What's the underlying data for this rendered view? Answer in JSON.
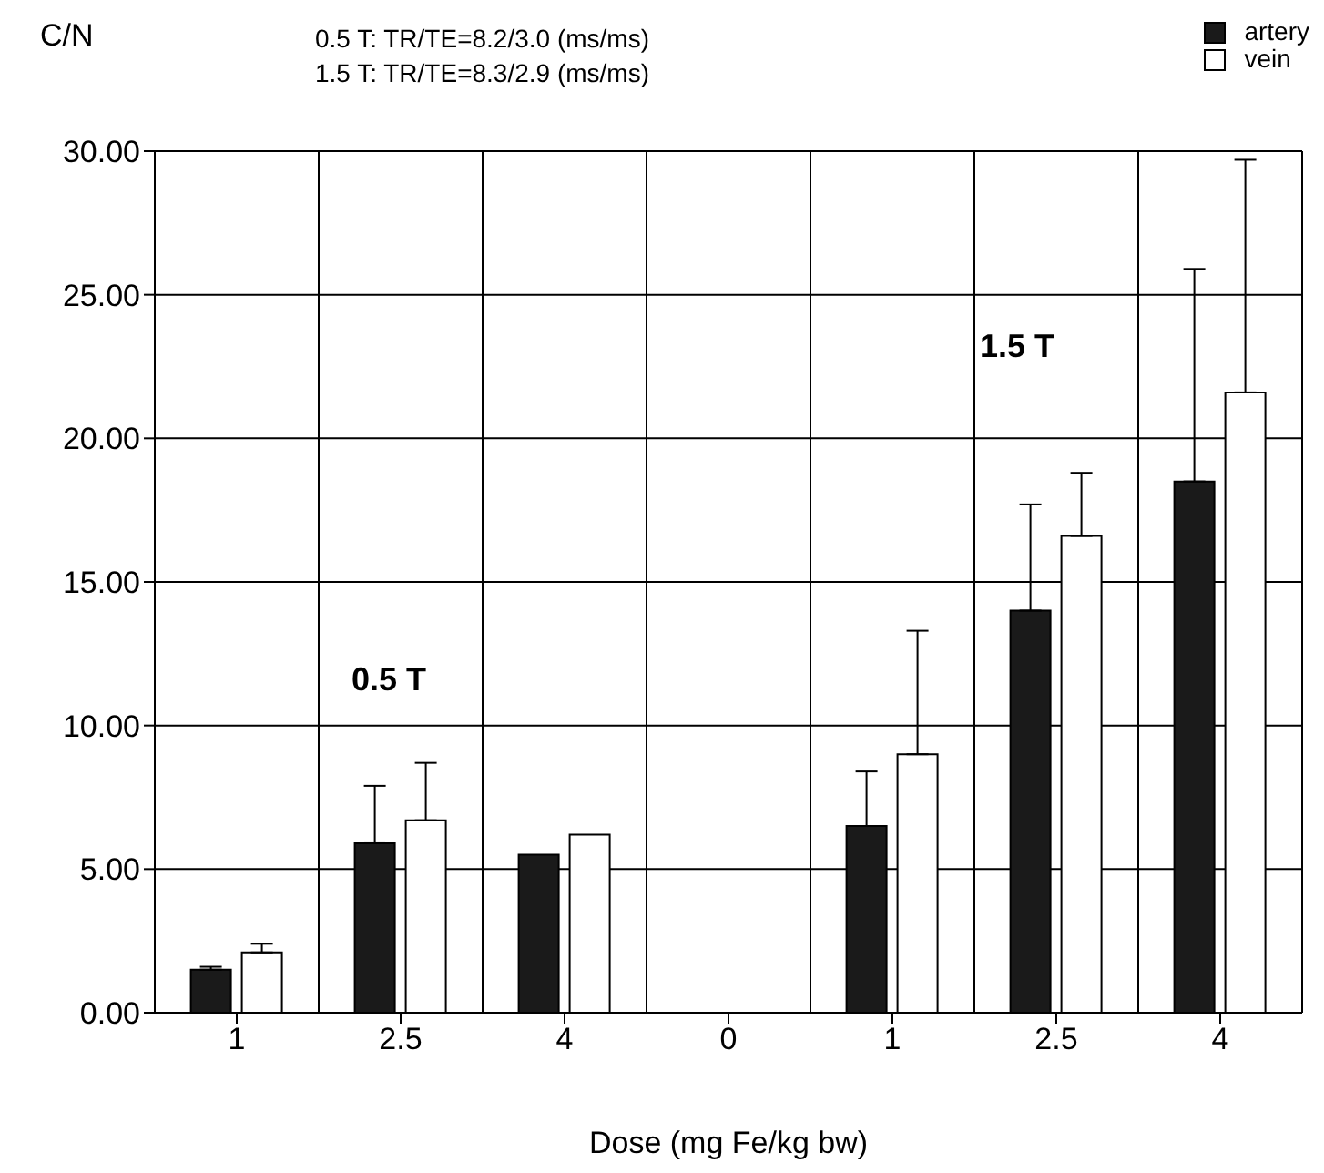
{
  "chart_data": {
    "type": "bar",
    "ylabel": "C/N",
    "subtitle": "0.5 T: TR/TE=8.2/3.0 (ms/ms)\n1.5 T: TR/TE=8.3/2.9 (ms/ms)",
    "xlabel": "Dose (mg Fe/kg bw)",
    "categories": [
      "1",
      "2.5",
      "4",
      "0",
      "1",
      "2.5",
      "4"
    ],
    "series": [
      {
        "name": "artery",
        "color": "#1a1a1a",
        "values": [
          1.5,
          5.9,
          5.5,
          null,
          6.5,
          14.0,
          18.5
        ],
        "errors": [
          [
            1.5,
            1.6
          ],
          [
            5.9,
            7.9
          ],
          null,
          null,
          [
            6.5,
            8.4
          ],
          [
            14.0,
            17.7
          ],
          [
            18.5,
            25.9
          ]
        ]
      },
      {
        "name": "vein",
        "color": "#ffffff",
        "values": [
          2.1,
          6.7,
          6.2,
          null,
          9.0,
          16.6,
          21.6
        ],
        "errors": [
          [
            2.1,
            2.4
          ],
          [
            6.7,
            8.7
          ],
          null,
          null,
          [
            9.0,
            13.3
          ],
          [
            16.6,
            18.8
          ],
          [
            21.6,
            29.7
          ]
        ]
      }
    ],
    "ylim": [
      0,
      30
    ],
    "yticks": [
      {
        "value": 0,
        "label": "0.00"
      },
      {
        "value": 5,
        "label": "5.00"
      },
      {
        "value": 10,
        "label": "10.00"
      },
      {
        "value": 15,
        "label": "15.00"
      },
      {
        "value": 20,
        "label": "20.00"
      },
      {
        "value": 25,
        "label": "25.00"
      },
      {
        "value": 30,
        "label": "30.00"
      }
    ],
    "annotations": [
      "0.5 T",
      "1.5 T"
    ],
    "grid": true,
    "legend": "top right"
  }
}
